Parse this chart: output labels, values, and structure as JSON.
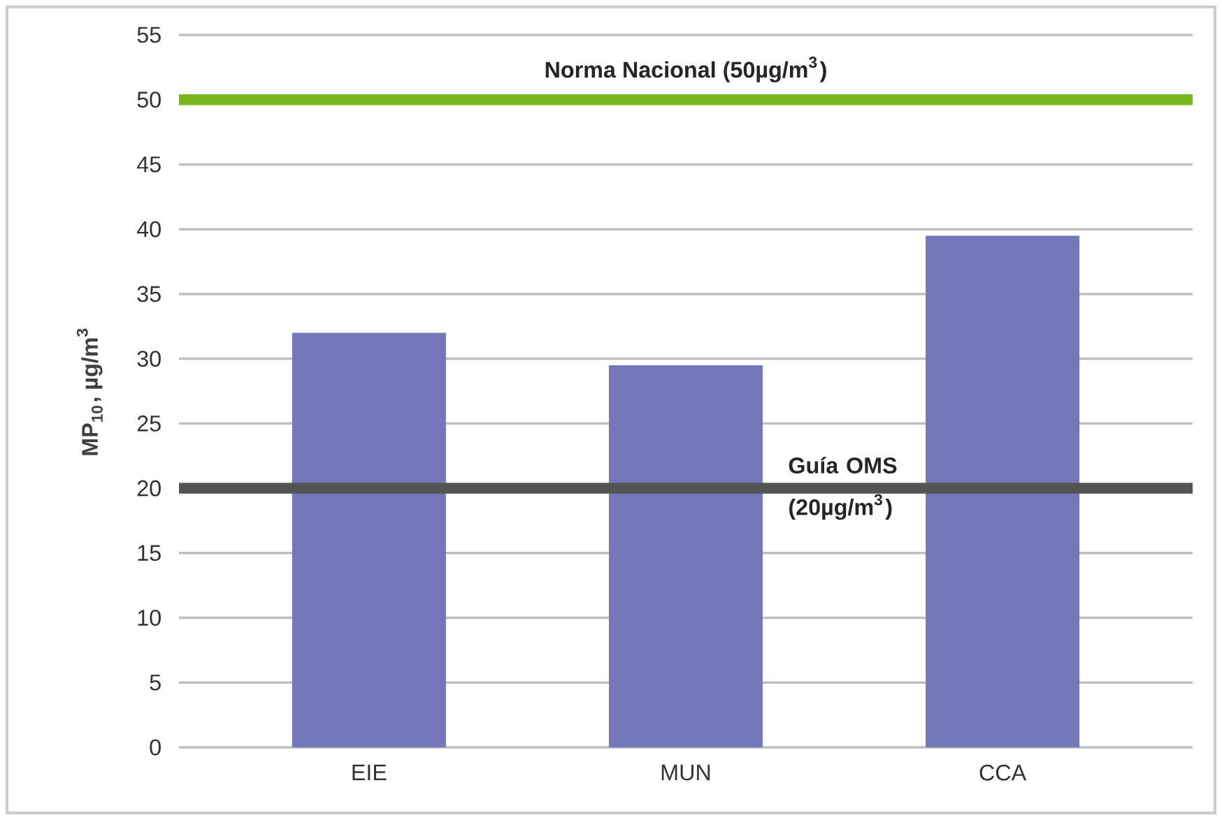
{
  "chart_data": {
    "type": "bar",
    "ylabel": "MP$_{10}$, µg/m$^{3}$",
    "categories": [
      "EIE",
      "MUN",
      "CCA"
    ],
    "values": [
      32,
      29.5,
      39.5
    ],
    "color": "#7478bb",
    "ylim": [
      0,
      55
    ],
    "yticks": [
      0,
      5,
      10,
      15,
      20,
      25,
      30,
      35,
      40,
      45,
      50,
      55
    ],
    "grid": "y",
    "ref_lines": [
      {
        "axis": "y",
        "value": 50,
        "label": "Norma Nacional (50µg/m$^{3}$)",
        "color": "#78b41e"
      },
      {
        "axis": "y",
        "value": 20,
        "label": "Guía OMS (20µg/m$^{3}$)",
        "color": "#545454"
      }
    ]
  }
}
